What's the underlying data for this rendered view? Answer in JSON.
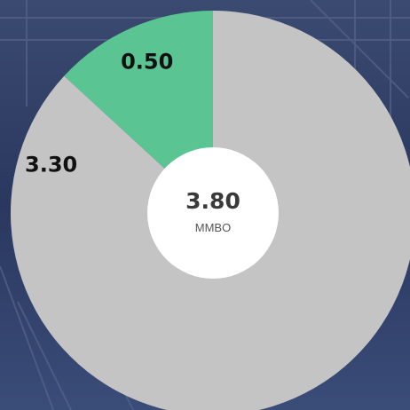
{
  "chart_data": {
    "type": "pie",
    "style": "donut",
    "slices": [
      {
        "label": "0.50",
        "value": 0.5,
        "color": "#5ac493"
      },
      {
        "label": "3.30",
        "value": 3.3,
        "color": "#c4c4c4"
      }
    ],
    "total": {
      "value_label": "3.80",
      "unit": "MMBO"
    }
  },
  "colors": {
    "background": "#2b3a5e",
    "center": "#ffffff"
  }
}
